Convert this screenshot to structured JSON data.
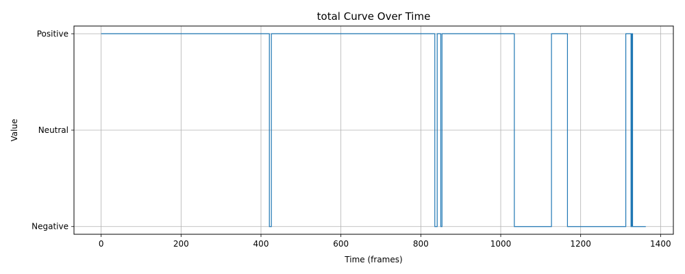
{
  "chart_data": {
    "type": "line",
    "title": "total Curve Over Time",
    "xlabel": "Time (frames)",
    "ylabel": "Value",
    "xlim": [
      -68,
      1432
    ],
    "ylim": [
      -0.08,
      2.08
    ],
    "grid": true,
    "x_ticks": [
      0,
      200,
      400,
      600,
      800,
      1000,
      1200,
      1400
    ],
    "y_ticks": [
      {
        "value": 0,
        "label": "Negative"
      },
      {
        "value": 1,
        "label": "Neutral"
      },
      {
        "value": 2,
        "label": "Positive"
      }
    ],
    "series": [
      {
        "color": "#1f77b4",
        "step": true,
        "points": [
          [
            0,
            2
          ],
          [
            421,
            2
          ],
          [
            421,
            0
          ],
          [
            426,
            0
          ],
          [
            426,
            2
          ],
          [
            835,
            2
          ],
          [
            835,
            0
          ],
          [
            841,
            0
          ],
          [
            841,
            2
          ],
          [
            850,
            2
          ],
          [
            850,
            0
          ],
          [
            853,
            0
          ],
          [
            853,
            2
          ],
          [
            1034,
            2
          ],
          [
            1034,
            0
          ],
          [
            1127,
            0
          ],
          [
            1127,
            2
          ],
          [
            1167,
            2
          ],
          [
            1167,
            0
          ],
          [
            1313,
            0
          ],
          [
            1313,
            2
          ],
          [
            1326,
            2
          ],
          [
            1326,
            0
          ],
          [
            1328,
            0
          ],
          [
            1328,
            2
          ],
          [
            1330,
            2
          ],
          [
            1330,
            0
          ],
          [
            1363,
            0
          ]
        ]
      }
    ]
  }
}
